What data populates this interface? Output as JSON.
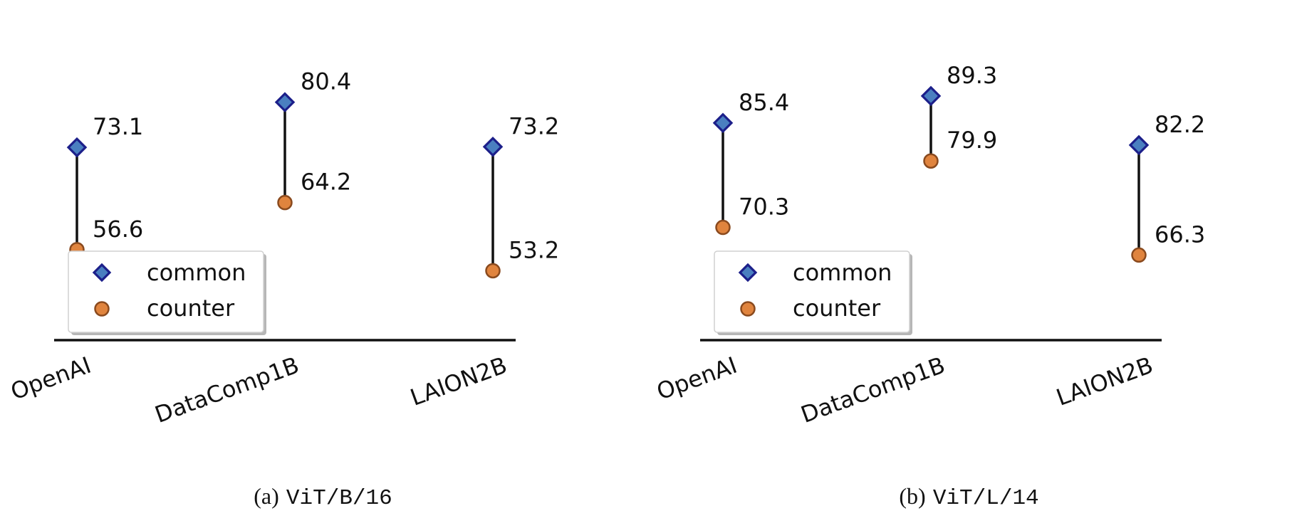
{
  "chart_data": [
    {
      "type": "scatter",
      "categories": [
        "OpenAI",
        "DataComp1B",
        "LAION2B"
      ],
      "series": [
        {
          "name": "common",
          "values": [
            73.1,
            80.4,
            73.2
          ]
        },
        {
          "name": "counter",
          "values": [
            56.6,
            64.2,
            53.2
          ]
        }
      ],
      "value_labels": {
        "common": [
          "73.1",
          "80.4",
          "73.2"
        ],
        "counter": [
          "56.6",
          "64.2",
          "53.2"
        ]
      },
      "ylim": [
        42,
        90
      ],
      "legend": {
        "placement": "lower-left",
        "entries": [
          "common",
          "counter"
        ]
      },
      "grid": false,
      "colors": {
        "common": "#4a7fc0",
        "counter": "#e0843e"
      },
      "caption": {
        "label": "(a)",
        "code": "ViT/B/16"
      }
    },
    {
      "type": "scatter",
      "categories": [
        "OpenAI",
        "DataComp1B",
        "LAION2B"
      ],
      "series": [
        {
          "name": "common",
          "values": [
            85.4,
            89.3,
            82.2
          ]
        },
        {
          "name": "counter",
          "values": [
            70.3,
            79.9,
            66.3
          ]
        }
      ],
      "value_labels": {
        "common": [
          "85.4",
          "89.3",
          "82.2"
        ],
        "counter": [
          "70.3",
          "79.9",
          "66.3"
        ]
      },
      "ylim": [
        54,
        97
      ],
      "legend": {
        "placement": "lower-left",
        "entries": [
          "common",
          "counter"
        ]
      },
      "grid": false,
      "colors": {
        "common": "#4a7fc0",
        "counter": "#e0843e"
      },
      "caption": {
        "label": "(b)",
        "code": "ViT/L/14"
      }
    }
  ]
}
